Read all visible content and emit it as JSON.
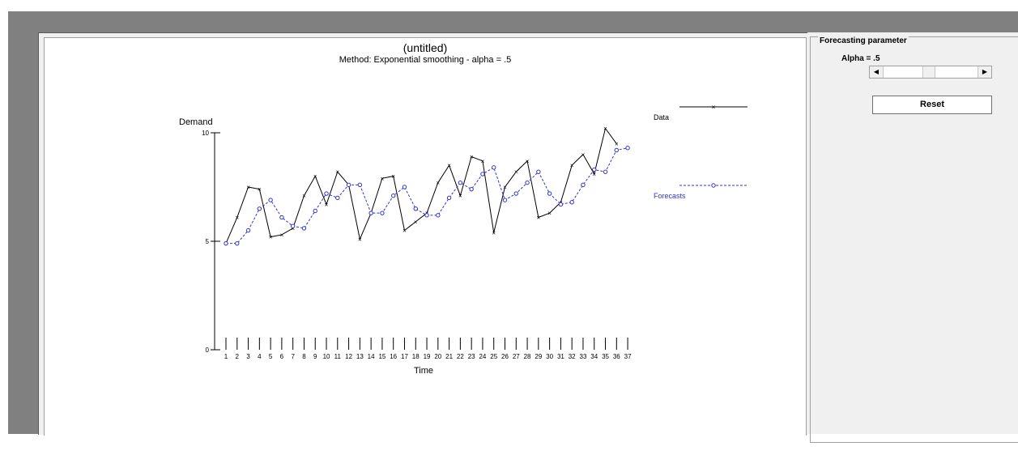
{
  "chart_data": {
    "type": "line",
    "title": "(untitled)",
    "subtitle": "Method: Exponential smoothing - alpha = .5",
    "xlabel": "Time",
    "ylabel": "Demand",
    "ylim": [
      0,
      10
    ],
    "y_ticks": [
      "0",
      "5",
      "10"
    ],
    "x": [
      1,
      2,
      3,
      4,
      5,
      6,
      7,
      8,
      9,
      10,
      11,
      12,
      13,
      14,
      15,
      16,
      17,
      18,
      19,
      20,
      21,
      22,
      23,
      24,
      25,
      26,
      27,
      28,
      29,
      30,
      31,
      32,
      33,
      34,
      35,
      36,
      37
    ],
    "x_tick_labels": [
      "1",
      "2",
      "3",
      "4",
      "5",
      "6",
      "7",
      "8",
      "9",
      "10",
      "11",
      "12",
      "13",
      "14",
      "15",
      "16",
      "17",
      "18",
      "19",
      "20",
      "21",
      "22",
      "23",
      "24",
      "25",
      "26",
      "27",
      "28",
      "29",
      "30",
      "31",
      "32",
      "33",
      "34",
      "35",
      "36",
      "37"
    ],
    "series": [
      {
        "name": "Data",
        "color": "#000000",
        "marker": "x",
        "linestyle": "solid",
        "x": [
          1,
          2,
          3,
          4,
          5,
          6,
          7,
          8,
          9,
          10,
          11,
          12,
          13,
          14,
          15,
          16,
          17,
          18,
          19,
          20,
          21,
          22,
          23,
          24,
          25,
          26,
          27,
          28,
          29,
          30,
          31,
          32,
          33,
          34,
          35,
          36
        ],
        "values": [
          4.9,
          6.1,
          7.5,
          7.4,
          5.2,
          5.3,
          5.6,
          7.1,
          8.0,
          6.7,
          8.2,
          7.6,
          5.1,
          6.3,
          7.9,
          8.0,
          5.5,
          5.9,
          6.3,
          7.7,
          8.5,
          7.1,
          8.9,
          8.7,
          5.4,
          7.5,
          8.2,
          8.7,
          6.1,
          6.3,
          6.8,
          8.5,
          9.0,
          8.1,
          10.2,
          9.5
        ]
      },
      {
        "name": "Forecasts",
        "color": "#3333cc",
        "marker": "o",
        "linestyle": "dashed",
        "x": [
          1,
          2,
          3,
          4,
          5,
          6,
          7,
          8,
          9,
          10,
          11,
          12,
          13,
          14,
          15,
          16,
          17,
          18,
          19,
          20,
          21,
          22,
          23,
          24,
          25,
          26,
          27,
          28,
          29,
          30,
          31,
          32,
          33,
          34,
          35,
          36,
          37
        ],
        "values": [
          4.9,
          4.9,
          5.5,
          6.5,
          6.9,
          6.1,
          5.7,
          5.6,
          6.4,
          7.2,
          7.0,
          7.6,
          7.6,
          6.3,
          6.3,
          7.1,
          7.5,
          6.5,
          6.2,
          6.2,
          7.0,
          7.7,
          7.4,
          8.1,
          8.4,
          6.9,
          7.2,
          7.7,
          8.2,
          7.2,
          6.7,
          6.8,
          7.6,
          8.3,
          8.2,
          9.2,
          9.3
        ]
      }
    ],
    "legend": {
      "placement": "right",
      "entries": [
        "Data",
        "Forecasts"
      ]
    }
  },
  "controls": {
    "group_title": "Forecasting parameter",
    "alpha_label": "Alpha = .5",
    "alpha_slider": {
      "min": 0,
      "max": 1,
      "value": 0.5
    },
    "reset_label": "Reset",
    "scroll_left_icon": "arrow-left-icon",
    "scroll_right_icon": "arrow-right-icon"
  },
  "colors": {
    "frame": "#808080",
    "panel": "#f0f0f0",
    "data_line": "#000000",
    "forecast_line": "#3333cc"
  }
}
